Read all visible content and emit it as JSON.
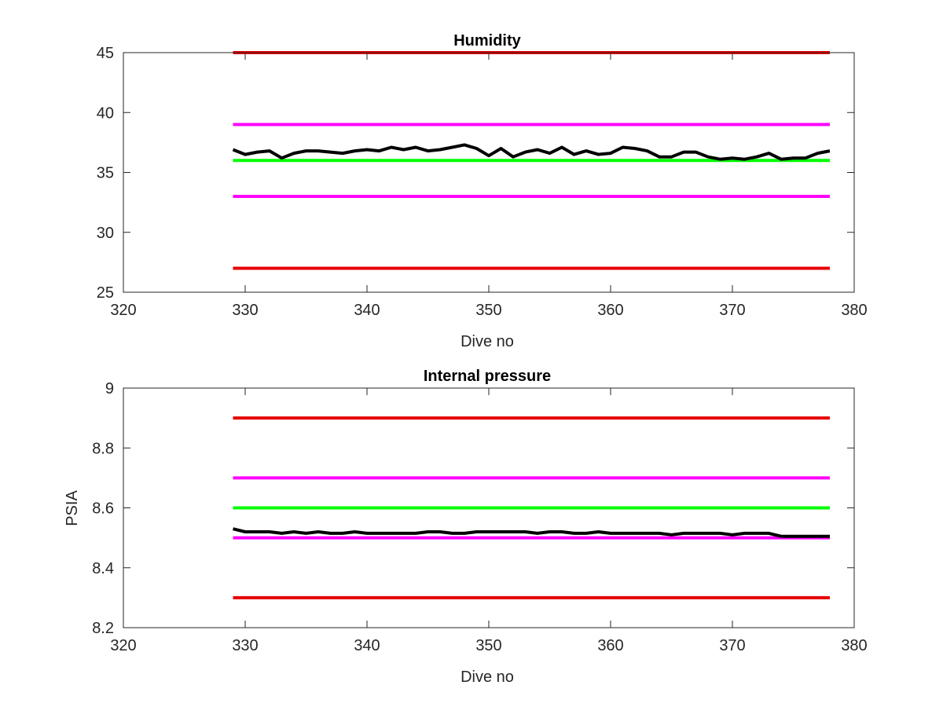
{
  "chart_data": [
    {
      "type": "line",
      "title": "Humidity",
      "xlabel": "Dive no",
      "ylabel": "",
      "xlim": [
        320,
        380
      ],
      "ylim": [
        25,
        45
      ],
      "xticks": [
        320,
        330,
        340,
        350,
        360,
        370,
        380
      ],
      "yticks": [
        25,
        30,
        35,
        40,
        45
      ],
      "xtick_labels": [
        "320",
        "330",
        "340",
        "350",
        "360",
        "370",
        "380"
      ],
      "ytick_labels": [
        "25",
        "30",
        "35",
        "40",
        "45"
      ],
      "grid": false,
      "reference_lines": [
        {
          "y": 45,
          "x": [
            329,
            378
          ],
          "color": "#e60000"
        },
        {
          "y": 39,
          "x": [
            329,
            378
          ],
          "color": "#ff00ff"
        },
        {
          "y": 36,
          "x": [
            329,
            378
          ],
          "color": "#00ff00"
        },
        {
          "y": 33,
          "x": [
            329,
            378
          ],
          "color": "#ff00ff"
        },
        {
          "y": 27,
          "x": [
            329,
            378
          ],
          "color": "#e60000"
        }
      ],
      "series": [
        {
          "color": "#000000",
          "x": [
            329,
            330,
            331,
            332,
            333,
            334,
            335,
            336,
            337,
            338,
            339,
            340,
            341,
            342,
            343,
            344,
            345,
            346,
            347,
            348,
            349,
            350,
            351,
            352,
            353,
            354,
            355,
            356,
            357,
            358,
            359,
            360,
            361,
            362,
            363,
            364,
            365,
            366,
            367,
            368,
            369,
            370,
            371,
            372,
            373,
            374,
            375,
            376,
            377,
            378
          ],
          "values": [
            36.9,
            36.5,
            36.7,
            36.8,
            36.2,
            36.6,
            36.8,
            36.8,
            36.7,
            36.6,
            36.8,
            36.9,
            36.8,
            37.1,
            36.9,
            37.1,
            36.8,
            36.9,
            37.1,
            37.3,
            37.0,
            36.4,
            37.0,
            36.3,
            36.7,
            36.9,
            36.6,
            37.1,
            36.5,
            36.8,
            36.5,
            36.6,
            37.1,
            37.0,
            36.8,
            36.3,
            36.3,
            36.7,
            36.7,
            36.3,
            36.1,
            36.2,
            36.1,
            36.3,
            36.6,
            36.1,
            36.2,
            36.2,
            36.6,
            36.8
          ]
        }
      ]
    },
    {
      "type": "line",
      "title": "Internal pressure",
      "xlabel": "Dive no",
      "ylabel": "PSIA",
      "xlim": [
        320,
        380
      ],
      "ylim": [
        8.2,
        9
      ],
      "xticks": [
        320,
        330,
        340,
        350,
        360,
        370,
        380
      ],
      "yticks": [
        8.2,
        8.4,
        8.6,
        8.8,
        9
      ],
      "xtick_labels": [
        "320",
        "330",
        "340",
        "350",
        "360",
        "370",
        "380"
      ],
      "ytick_labels": [
        "8.2",
        "8.4",
        "8.6",
        "8.8",
        "9"
      ],
      "grid": false,
      "reference_lines": [
        {
          "y": 8.9,
          "x": [
            329,
            378
          ],
          "color": "#e60000"
        },
        {
          "y": 8.7,
          "x": [
            329,
            378
          ],
          "color": "#ff00ff"
        },
        {
          "y": 8.6,
          "x": [
            329,
            378
          ],
          "color": "#00ff00"
        },
        {
          "y": 8.5,
          "x": [
            329,
            378
          ],
          "color": "#ff00ff"
        },
        {
          "y": 8.3,
          "x": [
            329,
            378
          ],
          "color": "#e60000"
        }
      ],
      "series": [
        {
          "color": "#000000",
          "x": [
            329,
            330,
            331,
            332,
            333,
            334,
            335,
            336,
            337,
            338,
            339,
            340,
            341,
            342,
            343,
            344,
            345,
            346,
            347,
            348,
            349,
            350,
            351,
            352,
            353,
            354,
            355,
            356,
            357,
            358,
            359,
            360,
            361,
            362,
            363,
            364,
            365,
            366,
            367,
            368,
            369,
            370,
            371,
            372,
            373,
            374,
            375,
            376,
            377,
            378
          ],
          "values": [
            8.53,
            8.52,
            8.52,
            8.52,
            8.515,
            8.52,
            8.515,
            8.52,
            8.515,
            8.515,
            8.52,
            8.515,
            8.515,
            8.515,
            8.515,
            8.515,
            8.52,
            8.52,
            8.515,
            8.515,
            8.52,
            8.52,
            8.52,
            8.52,
            8.52,
            8.515,
            8.52,
            8.52,
            8.515,
            8.515,
            8.52,
            8.515,
            8.515,
            8.515,
            8.515,
            8.515,
            8.51,
            8.515,
            8.515,
            8.515,
            8.515,
            8.51,
            8.515,
            8.515,
            8.515,
            8.505,
            8.505,
            8.505,
            8.505,
            8.505
          ]
        }
      ]
    }
  ]
}
